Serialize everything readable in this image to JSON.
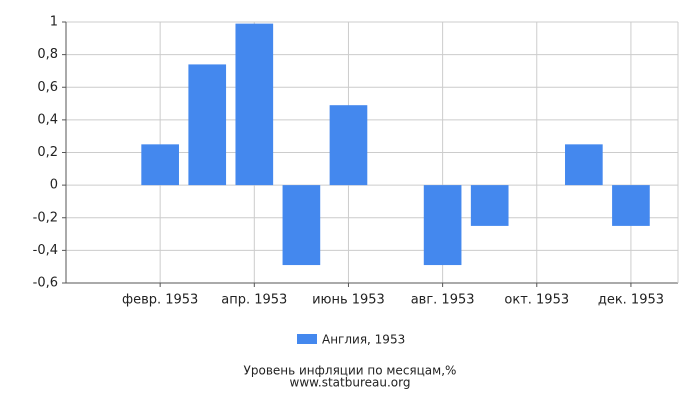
{
  "chart_data": {
    "type": "bar",
    "title": "Уровень инфляции по месяцам,%",
    "subtitle": "www.statbureau.org",
    "categories": [
      null,
      "февр. 1953",
      null,
      "апр. 1953",
      null,
      "июнь 1953",
      null,
      "авг. 1953",
      null,
      "окт. 1953",
      null,
      "дек. 1953"
    ],
    "series": [
      {
        "name": "Англия, 1953",
        "color": "#4488ee",
        "values": [
          0,
          0.25,
          0.74,
          0.99,
          -0.49,
          0.49,
          0,
          -0.49,
          -0.25,
          0,
          0.25,
          -0.25
        ]
      }
    ],
    "ylim": [
      -0.6,
      1
    ],
    "yticks": [
      {
        "value": -0.6,
        "label": "-0,6"
      },
      {
        "value": -0.4,
        "label": "-0,4"
      },
      {
        "value": -0.2,
        "label": "-0,2"
      },
      0,
      {
        "value": 0.2,
        "label": "0,2"
      },
      {
        "value": 0.4,
        "label": "0,4"
      },
      {
        "value": 0.6,
        "label": "0,6"
      },
      {
        "value": 0.8,
        "label": "0,8"
      },
      1
    ],
    "grid": true
  }
}
